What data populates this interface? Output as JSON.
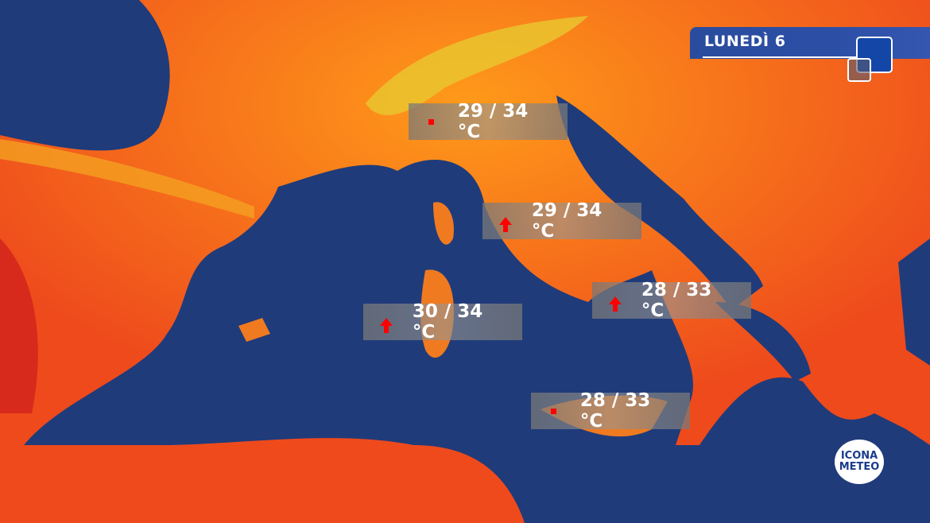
{
  "header": {
    "day": "LUNEDÌ 6"
  },
  "legend_colors": {
    "sea": "#1f3b7a",
    "hot": "#e8401c",
    "warm": "#ff8a1a",
    "mild": "#f0c020",
    "trend_up": "#ff0000"
  },
  "labels": [
    {
      "text": "29 / 34 °C",
      "trend": "stable"
    },
    {
      "text": "29 / 34 °C",
      "trend": "up"
    },
    {
      "text": "30 / 34 °C",
      "trend": "up"
    },
    {
      "text": "28 / 33 °C",
      "trend": "up"
    },
    {
      "text": "28 / 33 °C",
      "trend": "stable"
    }
  ],
  "logo": {
    "line1": "ICONA",
    "line2": "METEO"
  }
}
